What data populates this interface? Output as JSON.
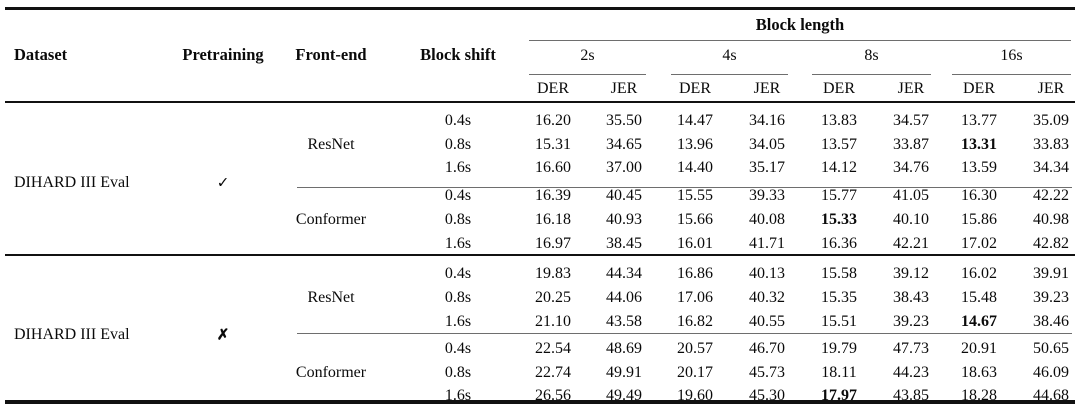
{
  "table": {
    "col_headers": {
      "dataset": "Dataset",
      "pretraining": "Pretraining",
      "front_end": "Front-end",
      "block_shift": "Block shift",
      "block_length": "Block length",
      "length_groups": [
        "2s",
        "4s",
        "8s",
        "16s"
      ],
      "metrics": [
        "DER",
        "JER"
      ]
    },
    "groups": [
      {
        "dataset": "DIHARD III Eval",
        "pretraining": "✓",
        "front_ends": [
          {
            "name": "ResNet",
            "rows": [
              {
                "shift": "0.4s",
                "values": [
                  "16.20",
                  "35.50",
                  "14.47",
                  "34.16",
                  "13.83",
                  "34.57",
                  "13.77",
                  "35.09"
                ],
                "bold": []
              },
              {
                "shift": "0.8s",
                "values": [
                  "15.31",
                  "34.65",
                  "13.96",
                  "34.05",
                  "13.57",
                  "33.87",
                  "13.31",
                  "33.83"
                ],
                "bold": [
                  6
                ]
              },
              {
                "shift": "1.6s",
                "values": [
                  "16.60",
                  "37.00",
                  "14.40",
                  "35.17",
                  "14.12",
                  "34.76",
                  "13.59",
                  "34.34"
                ],
                "bold": []
              }
            ]
          },
          {
            "name": "Conformer",
            "rows": [
              {
                "shift": "0.4s",
                "values": [
                  "16.39",
                  "40.45",
                  "15.55",
                  "39.33",
                  "15.77",
                  "41.05",
                  "16.30",
                  "42.22"
                ],
                "bold": []
              },
              {
                "shift": "0.8s",
                "values": [
                  "16.18",
                  "40.93",
                  "15.66",
                  "40.08",
                  "15.33",
                  "40.10",
                  "15.86",
                  "40.98"
                ],
                "bold": [
                  4
                ]
              },
              {
                "shift": "1.6s",
                "values": [
                  "16.97",
                  "38.45",
                  "16.01",
                  "41.71",
                  "16.36",
                  "42.21",
                  "17.02",
                  "42.82"
                ],
                "bold": []
              }
            ]
          }
        ]
      },
      {
        "dataset": "DIHARD III Eval",
        "pretraining": "✗",
        "front_ends": [
          {
            "name": "ResNet",
            "rows": [
              {
                "shift": "0.4s",
                "values": [
                  "19.83",
                  "44.34",
                  "16.86",
                  "40.13",
                  "15.58",
                  "39.12",
                  "16.02",
                  "39.91"
                ],
                "bold": []
              },
              {
                "shift": "0.8s",
                "values": [
                  "20.25",
                  "44.06",
                  "17.06",
                  "40.32",
                  "15.35",
                  "38.43",
                  "15.48",
                  "39.23"
                ],
                "bold": []
              },
              {
                "shift": "1.6s",
                "values": [
                  "21.10",
                  "43.58",
                  "16.82",
                  "40.55",
                  "15.51",
                  "39.23",
                  "14.67",
                  "38.46"
                ],
                "bold": [
                  6
                ]
              }
            ]
          },
          {
            "name": "Conformer",
            "rows": [
              {
                "shift": "0.4s",
                "values": [
                  "22.54",
                  "48.69",
                  "20.57",
                  "46.70",
                  "19.79",
                  "47.73",
                  "20.91",
                  "50.65"
                ],
                "bold": []
              },
              {
                "shift": "0.8s",
                "values": [
                  "22.74",
                  "49.91",
                  "20.17",
                  "45.73",
                  "18.11",
                  "44.23",
                  "18.63",
                  "46.09"
                ],
                "bold": []
              },
              {
                "shift": "1.6s",
                "values": [
                  "26.56",
                  "49.49",
                  "19.60",
                  "45.30",
                  "17.97",
                  "43.85",
                  "18.28",
                  "44.68"
                ],
                "bold": [
                  4
                ]
              }
            ]
          }
        ]
      }
    ]
  }
}
